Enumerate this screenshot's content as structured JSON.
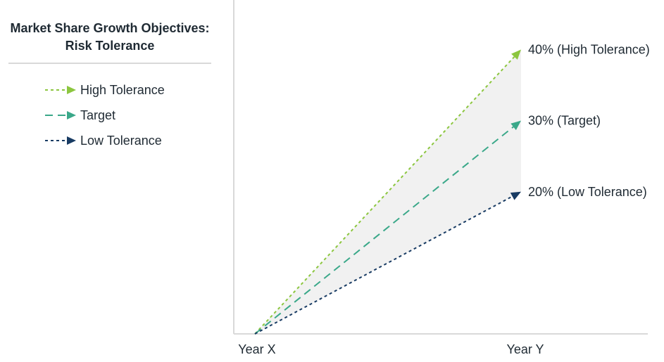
{
  "legend": {
    "title_line1": "Market Share Growth Objectives:",
    "title_line2": "Risk Tolerance",
    "items": [
      {
        "label": "High Tolerance",
        "color": "#8cc63f",
        "dash": "short"
      },
      {
        "label": "Target",
        "color": "#3aa889",
        "dash": "long"
      },
      {
        "label": "Low Tolerance",
        "color": "#183b63",
        "dash": "short"
      }
    ]
  },
  "colors": {
    "axis": "#d9d9d9",
    "band": "#f1f1f1",
    "high": "#8cc63f",
    "target": "#3aa889",
    "low": "#183b63"
  },
  "chart_data": {
    "type": "line",
    "categories": [
      "Year X",
      "Year Y"
    ],
    "series": [
      {
        "name": "High Tolerance",
        "values": [
          0,
          40
        ],
        "end_label": "40% (High Tolerance)"
      },
      {
        "name": "Target",
        "values": [
          0,
          30
        ],
        "end_label": "30% (Target)"
      },
      {
        "name": "Low Tolerance",
        "values": [
          0,
          20
        ],
        "end_label": "20% (Low Tolerance)"
      }
    ],
    "ylim": [
      0,
      45
    ],
    "shaded_band_between": [
      "Low Tolerance",
      "High Tolerance"
    ],
    "grid": false,
    "legend_position": "left"
  }
}
